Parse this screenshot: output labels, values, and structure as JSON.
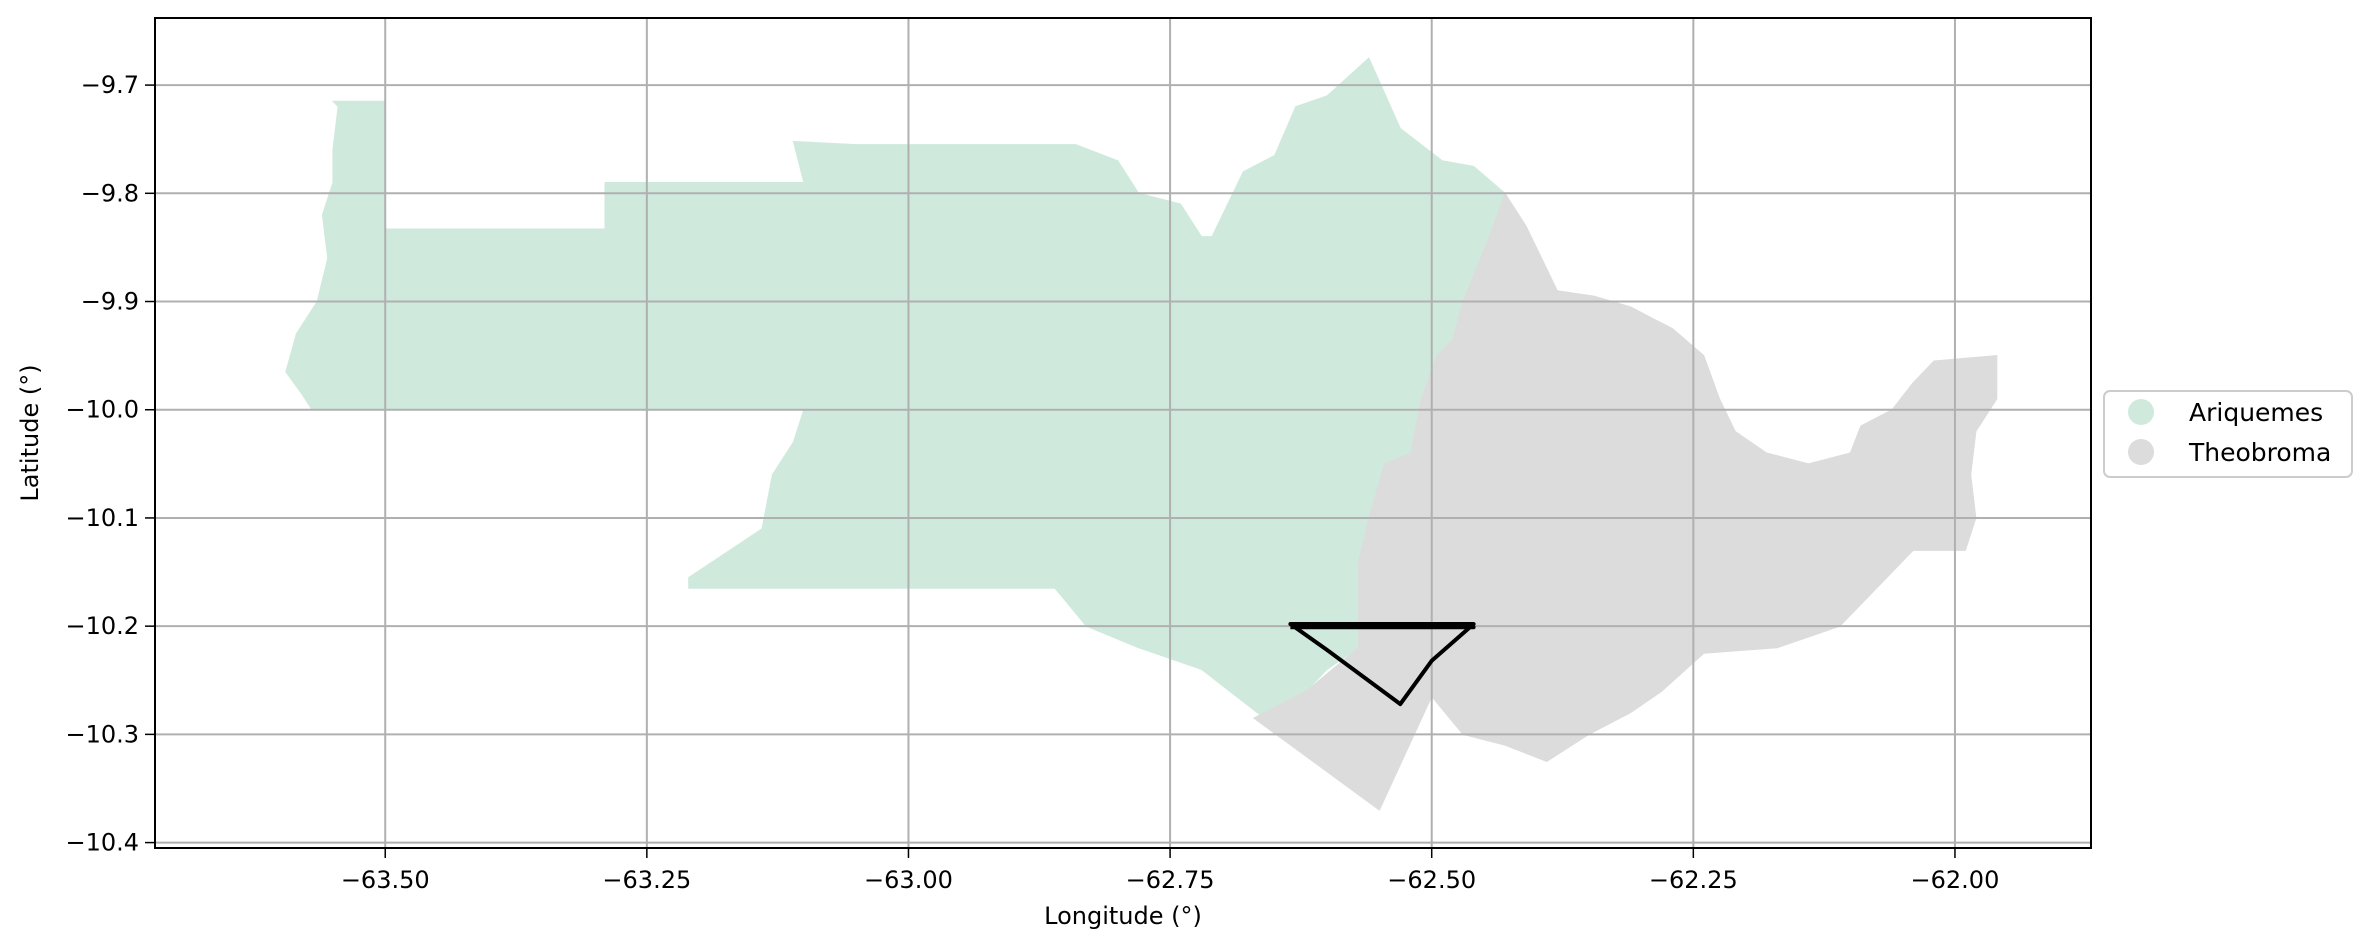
{
  "chart_data": {
    "type": "map",
    "xlabel": "Longitude (°)",
    "ylabel": "Latitude (°)",
    "xlim": [
      -63.72,
      -61.87
    ],
    "ylim": [
      -10.405,
      -9.638
    ],
    "grid": true,
    "legend_position": "right",
    "x_ticks": [
      -63.5,
      -63.25,
      -63.0,
      -62.75,
      -62.5,
      -62.25,
      -62.0
    ],
    "x_tick_labels": [
      "−63.50",
      "−63.25",
      "−63.00",
      "−62.75",
      "−62.50",
      "−62.25",
      "−62.00"
    ],
    "y_ticks": [
      -9.7,
      -9.8,
      -9.9,
      -10.0,
      -10.1,
      -10.2,
      -10.3,
      -10.4
    ],
    "y_tick_labels": [
      "−9.7",
      "−9.8",
      "−9.9",
      "−10.0",
      "−10.1",
      "−10.2",
      "−10.3",
      "−10.4"
    ],
    "regions": [
      {
        "name": "Ariquemes",
        "color": "#cfeadd",
        "polygon": [
          [
            -63.5,
            -9.715
          ],
          [
            -63.5,
            -9.833
          ],
          [
            -63.29,
            -9.833
          ],
          [
            -63.29,
            -9.79
          ],
          [
            -63.1,
            -9.79
          ],
          [
            -63.11,
            -9.752
          ],
          [
            -63.05,
            -9.755
          ],
          [
            -62.84,
            -9.755
          ],
          [
            -62.8,
            -9.77
          ],
          [
            -62.78,
            -9.8
          ],
          [
            -62.74,
            -9.81
          ],
          [
            -62.72,
            -9.84
          ],
          [
            -62.71,
            -9.84
          ],
          [
            -62.68,
            -9.78
          ],
          [
            -62.65,
            -9.765
          ],
          [
            -62.63,
            -9.72
          ],
          [
            -62.6,
            -9.71
          ],
          [
            -62.56,
            -9.675
          ],
          [
            -62.53,
            -9.74
          ],
          [
            -62.49,
            -9.77
          ],
          [
            -62.46,
            -9.775
          ],
          [
            -62.43,
            -9.8
          ],
          [
            -62.445,
            -9.84
          ],
          [
            -62.47,
            -9.9
          ],
          [
            -62.48,
            -9.935
          ],
          [
            -62.495,
            -9.95
          ],
          [
            -62.51,
            -9.99
          ],
          [
            -62.52,
            -10.04
          ],
          [
            -62.545,
            -10.05
          ],
          [
            -62.56,
            -10.1
          ],
          [
            -62.57,
            -10.14
          ],
          [
            -62.57,
            -10.22
          ],
          [
            -62.6,
            -10.24
          ],
          [
            -62.62,
            -10.26
          ],
          [
            -62.66,
            -10.285
          ],
          [
            -62.68,
            -10.27
          ],
          [
            -62.72,
            -10.24
          ],
          [
            -62.78,
            -10.22
          ],
          [
            -62.83,
            -10.2
          ],
          [
            -62.86,
            -10.165
          ],
          [
            -63.21,
            -10.165
          ],
          [
            -63.21,
            -10.155
          ],
          [
            -63.14,
            -10.11
          ],
          [
            -63.13,
            -10.06
          ],
          [
            -63.11,
            -10.03
          ],
          [
            -63.1,
            -10.0
          ],
          [
            -63.57,
            -10.0
          ],
          [
            -63.58,
            -9.985
          ],
          [
            -63.595,
            -9.965
          ],
          [
            -63.585,
            -9.93
          ],
          [
            -63.565,
            -9.9
          ],
          [
            -63.555,
            -9.86
          ],
          [
            -63.56,
            -9.82
          ],
          [
            -63.55,
            -9.79
          ],
          [
            -63.55,
            -9.76
          ],
          [
            -63.545,
            -9.72
          ],
          [
            -63.55,
            -9.715
          ]
        ]
      },
      {
        "name": "Theobroma",
        "color": "#dcdcdc",
        "polygon": [
          [
            -62.43,
            -9.8
          ],
          [
            -62.41,
            -9.83
          ],
          [
            -62.395,
            -9.86
          ],
          [
            -62.38,
            -9.89
          ],
          [
            -62.345,
            -9.895
          ],
          [
            -62.31,
            -9.905
          ],
          [
            -62.27,
            -9.925
          ],
          [
            -62.24,
            -9.95
          ],
          [
            -62.225,
            -9.99
          ],
          [
            -62.21,
            -10.02
          ],
          [
            -62.18,
            -10.04
          ],
          [
            -62.14,
            -10.05
          ],
          [
            -62.1,
            -10.04
          ],
          [
            -62.09,
            -10.015
          ],
          [
            -62.06,
            -10.0
          ],
          [
            -62.04,
            -9.975
          ],
          [
            -62.02,
            -9.955
          ],
          [
            -61.96,
            -9.95
          ],
          [
            -61.96,
            -9.99
          ],
          [
            -61.98,
            -10.02
          ],
          [
            -61.985,
            -10.06
          ],
          [
            -61.98,
            -10.1
          ],
          [
            -61.99,
            -10.13
          ],
          [
            -62.04,
            -10.13
          ],
          [
            -62.07,
            -10.16
          ],
          [
            -62.11,
            -10.2
          ],
          [
            -62.17,
            -10.22
          ],
          [
            -62.24,
            -10.225
          ],
          [
            -62.28,
            -10.26
          ],
          [
            -62.31,
            -10.28
          ],
          [
            -62.35,
            -10.3
          ],
          [
            -62.39,
            -10.325
          ],
          [
            -62.43,
            -10.31
          ],
          [
            -62.47,
            -10.3
          ],
          [
            -62.5,
            -10.265
          ],
          [
            -62.55,
            -10.37
          ],
          [
            -62.67,
            -10.285
          ],
          [
            -62.62,
            -10.26
          ],
          [
            -62.57,
            -10.22
          ],
          [
            -62.57,
            -10.14
          ],
          [
            -62.56,
            -10.1
          ],
          [
            -62.545,
            -10.05
          ],
          [
            -62.52,
            -10.04
          ],
          [
            -62.51,
            -9.99
          ],
          [
            -62.495,
            -9.95
          ],
          [
            -62.48,
            -9.935
          ],
          [
            -62.47,
            -9.9
          ],
          [
            -62.445,
            -9.84
          ]
        ]
      }
    ],
    "overlay": {
      "color": "#000000",
      "polyline": [
        [
          -62.635,
          -10.198
        ],
        [
          -62.6,
          -10.222
        ],
        [
          -62.53,
          -10.272
        ],
        [
          -62.5,
          -10.232
        ],
        [
          -62.46,
          -10.198
        ],
        [
          -62.635,
          -10.198
        ],
        [
          -62.46,
          -10.201
        ],
        [
          -62.635,
          -10.201
        ]
      ]
    }
  },
  "legend": {
    "items": [
      {
        "label": "Ariquemes",
        "color": "#cfeadd"
      },
      {
        "label": "Theobroma",
        "color": "#dcdcdc"
      }
    ]
  }
}
